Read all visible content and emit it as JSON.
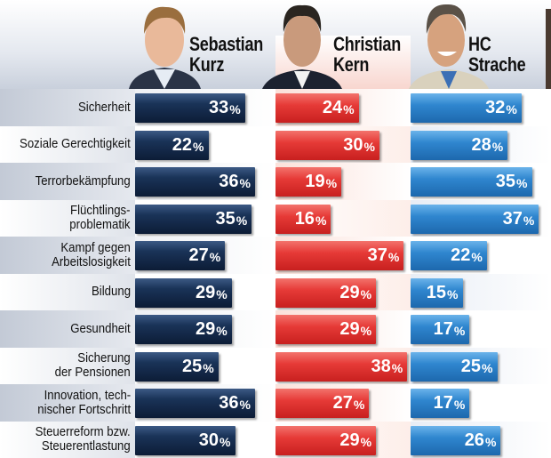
{
  "chart_data": {
    "type": "bar",
    "title": "",
    "unit": "%",
    "categories": [
      "Sicherheit",
      "Soziale Gerechtigkeit",
      "Terrorbekämpfung",
      "Flüchtlings-\nproblematik",
      "Kampf gegen\nArbeitslosigkeit",
      "Bildung",
      "Gesundheit",
      "Sicherung\nder Pensionen",
      "Innovation, tech-\nnischer Fortschritt",
      "Steuerreform bzw.\nSteuerentlastung"
    ],
    "series": [
      {
        "name": "Sebastian Kurz",
        "name_lines": [
          "Sebastian",
          "Kurz"
        ],
        "color": "#12284a",
        "values": [
          33,
          22,
          36,
          35,
          27,
          29,
          29,
          25,
          36,
          30
        ]
      },
      {
        "name": "Christian Kern",
        "name_lines": [
          "Christian",
          "Kern"
        ],
        "color": "#e8393a",
        "values": [
          24,
          30,
          19,
          16,
          37,
          29,
          29,
          38,
          27,
          29
        ]
      },
      {
        "name": "HC Strache",
        "name_lines": [
          "HC",
          "Strache"
        ],
        "color": "#2f86cf",
        "values": [
          32,
          28,
          35,
          37,
          22,
          15,
          17,
          25,
          17,
          26
        ]
      }
    ],
    "xlim": [
      0,
      40
    ]
  }
}
